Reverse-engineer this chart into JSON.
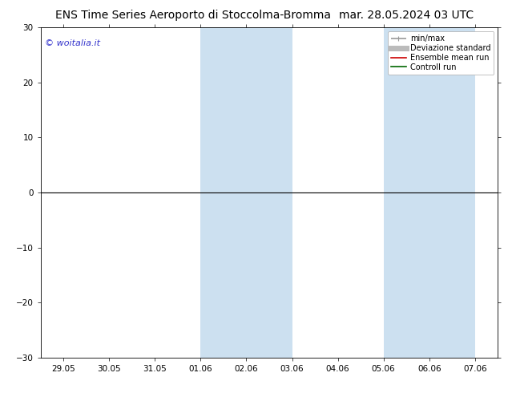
{
  "title": "ENS Time Series Aeroporto di Stoccolma-Bromma",
  "date_str": "mar. 28.05.2024 03 UTC",
  "ylim": [
    -30,
    30
  ],
  "yticks": [
    -30,
    -20,
    -10,
    0,
    10,
    20,
    30
  ],
  "x_labels": [
    "29.05",
    "30.05",
    "31.05",
    "01.06",
    "02.06",
    "03.06",
    "04.06",
    "05.06",
    "06.06",
    "07.06"
  ],
  "x_values": [
    0,
    1,
    2,
    3,
    4,
    5,
    6,
    7,
    8,
    9
  ],
  "xlim": [
    -0.5,
    9.5
  ],
  "shaded_regions": [
    {
      "xmin": 3.0,
      "xmax": 5.0,
      "color": "#cce0f0"
    },
    {
      "xmin": 7.0,
      "xmax": 9.0,
      "color": "#cce0f0"
    }
  ],
  "legend_items": [
    {
      "label": "min/max",
      "color": "#999999",
      "lw": 1.2
    },
    {
      "label": "Deviazione standard",
      "color": "#bbbbbb",
      "lw": 5
    },
    {
      "label": "Ensemble mean run",
      "color": "#cc0000",
      "lw": 1.2
    },
    {
      "label": "Controll run",
      "color": "#006600",
      "lw": 1.2
    }
  ],
  "watermark": "© woitalia.it",
  "watermark_color": "#3333cc",
  "background_color": "#ffffff",
  "plot_bg_color": "#ffffff",
  "zero_line_color": "#000000",
  "spine_color": "#000000",
  "title_fontsize": 10,
  "tick_fontsize": 7.5,
  "legend_fontsize": 7,
  "watermark_fontsize": 8
}
